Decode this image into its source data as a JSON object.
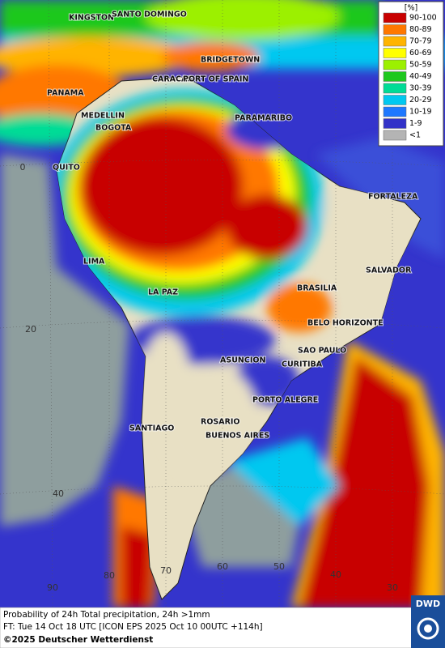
{
  "legend": {
    "title": "[%]",
    "items": [
      {
        "label": "90-100",
        "color": "#c80000"
      },
      {
        "label": "80-89",
        "color": "#ff7800"
      },
      {
        "label": "70-79",
        "color": "#ffb400"
      },
      {
        "label": "60-69",
        "color": "#ffff00"
      },
      {
        "label": "50-59",
        "color": "#9cf000"
      },
      {
        "label": "40-49",
        "color": "#1ec81e"
      },
      {
        "label": "30-39",
        "color": "#00dc96"
      },
      {
        "label": "20-29",
        "color": "#00c8f0"
      },
      {
        "label": "10-19",
        "color": "#1e78ff"
      },
      {
        "label": "1-9",
        "color": "#3232c8"
      },
      {
        "label": "<1",
        "color": "#b4b4b4"
      }
    ]
  },
  "cities": [
    "KINGSTON",
    "SANTO DOMINGO",
    "BRIDGETOWN",
    "CARACAS",
    "PORT OF SPAIN",
    "PANAMA",
    "MEDELLIN",
    "BOGOTA",
    "PARAMARIBO",
    "QUITO",
    "FORTALEZA",
    "LIMA",
    "SALVADOR",
    "LA PAZ",
    "BRASILIA",
    "BELO HORIZONTE",
    "SAO PAULO",
    "ASUNCION",
    "CURITIBA",
    "PORTO ALEGRE",
    "ROSARIO",
    "SANTIAGO",
    "BUENOS AIRES"
  ],
  "grid_labels": [
    "0",
    "20",
    "40",
    "90",
    "80",
    "70",
    "60",
    "50",
    "40",
    "30"
  ],
  "footer": {
    "line1": "Probability of 24h Total precipitation, 24h >1mm",
    "line2": "FT: Tue 14 Oct 18 UTC [ICON EPS 2025 Oct 10 00UTC +114h]",
    "line3": "©2025 Deutscher Wetterdienst",
    "logo": "DWD"
  }
}
